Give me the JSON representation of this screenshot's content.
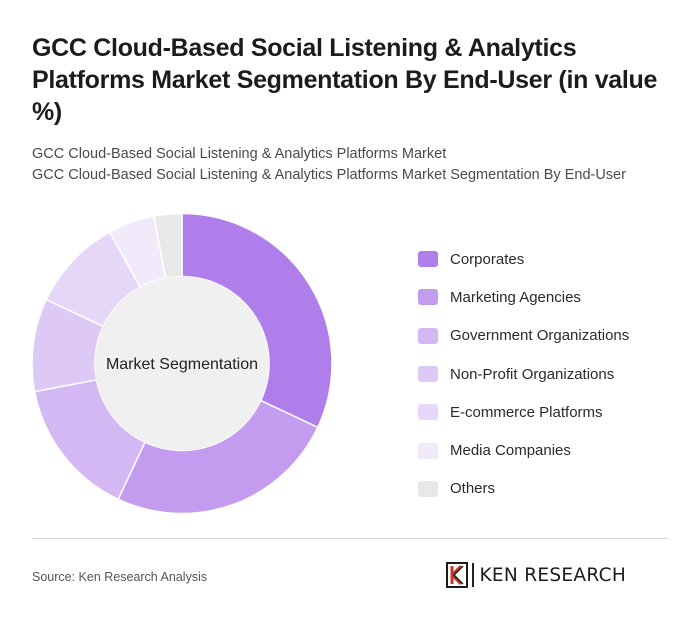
{
  "header": {
    "title": "GCC Cloud-Based Social Listening & Analytics Platforms Market Segmentation By End-User (in value %)",
    "subtitle_1": "GCC Cloud-Based Social Listening & Analytics Platforms Market",
    "subtitle_2": "GCC Cloud-Based Social Listening & Analytics Platforms Market Segmentation By End-User"
  },
  "chart_data": {
    "type": "pie",
    "donut": true,
    "center_label": "Market Segmentation",
    "categories": [
      "Corporates",
      "Marketing Agencies",
      "Government Organizations",
      "Non-Profit Organizations",
      "E-commerce Platforms",
      "Media Companies",
      "Others"
    ],
    "values": [
      32,
      25,
      15,
      10,
      10,
      5,
      3
    ],
    "colors": [
      "#b07eea",
      "#c39cf0",
      "#d4b8f4",
      "#ddc8f6",
      "#e6d7f8",
      "#f1eafb",
      "#e8e8e8"
    ],
    "legend_placement": "right"
  },
  "footer": {
    "source": "Source: Ken Research Analysis",
    "brand": "KEN RESEARCH"
  }
}
